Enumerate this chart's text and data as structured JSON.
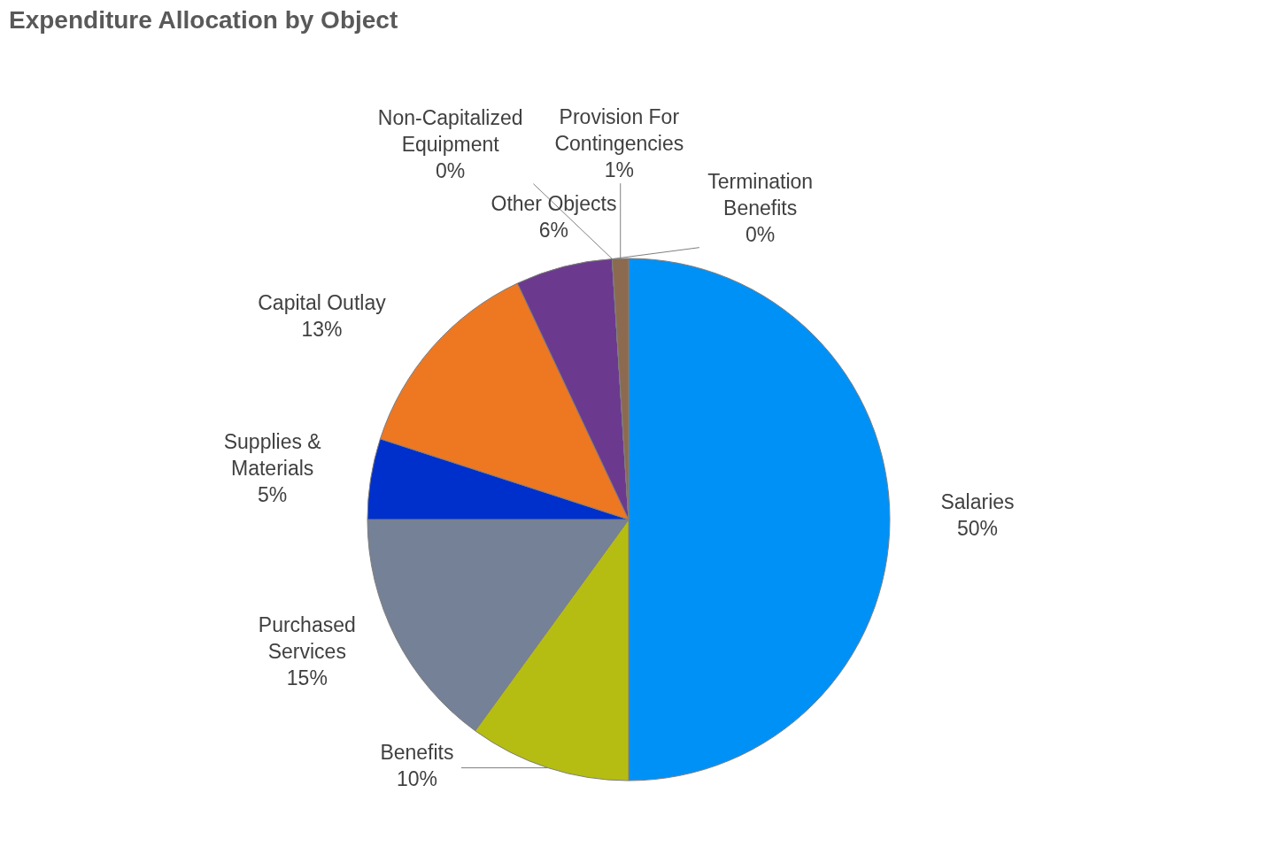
{
  "chart_data": {
    "type": "pie",
    "title": "Expenditure Allocation by Object",
    "categories": [
      "Salaries",
      "Benefits",
      "Purchased Services",
      "Supplies & Materials",
      "Capital Outlay",
      "Other Objects",
      "Non-Capitalized Equipment",
      "Termination Benefits",
      "Provision For Contingencies"
    ],
    "values": [
      50,
      10,
      15,
      5,
      13,
      6,
      0,
      0,
      1
    ],
    "value_labels": [
      "50%",
      "10%",
      "15%",
      "5%",
      "13%",
      "6%",
      "0%",
      "0%",
      "1%"
    ],
    "colors": [
      "#0091f7",
      "#b5bd12",
      "#758196",
      "#0030cc",
      "#ee7722",
      "#6b3a8e",
      "#5a8a3a",
      "#c0c0c0",
      "#8c6a4f"
    ],
    "legend": false
  }
}
